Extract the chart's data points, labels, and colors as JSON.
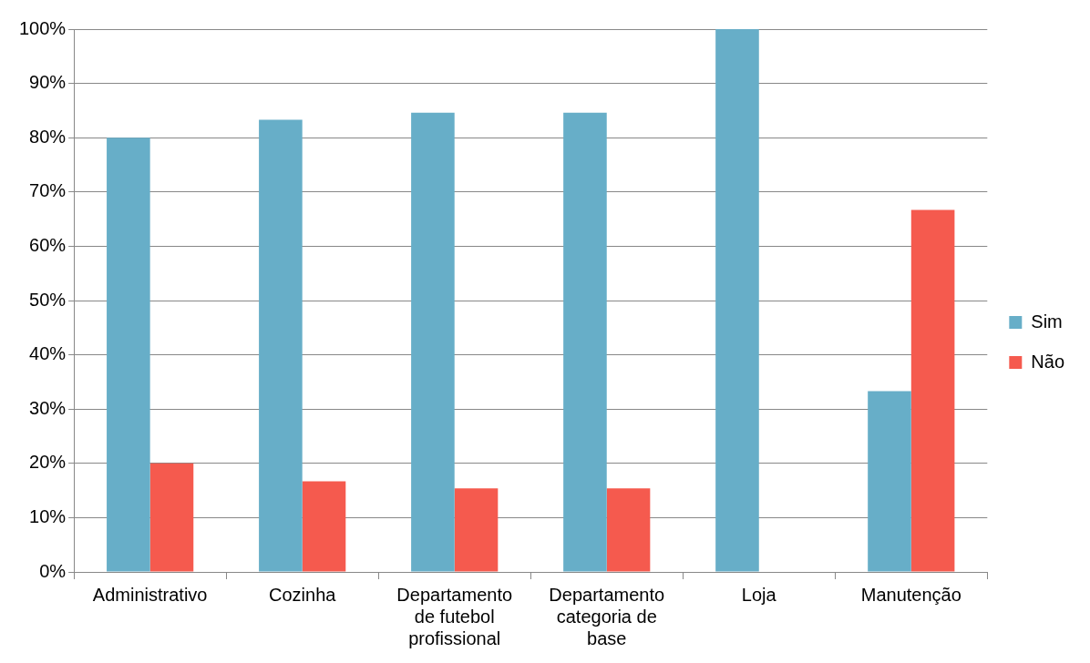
{
  "chart_data": {
    "type": "bar",
    "categories": [
      "Administrativo",
      "Cozinha",
      "Departamento de futebol profissional",
      "Departamento categoria de base",
      "Loja",
      "Manutenção"
    ],
    "series": [
      {
        "name": "Sim",
        "color": "#67aec8",
        "values": [
          80,
          83.3,
          84.6,
          84.6,
          100,
          33.3
        ]
      },
      {
        "name": "Não",
        "color": "#f55a4e",
        "values": [
          20,
          16.7,
          15.4,
          15.4,
          0,
          66.7
        ]
      }
    ],
    "ylim": [
      0,
      100
    ],
    "yticks": [
      {
        "value": 0,
        "label": "0%"
      },
      {
        "value": 10,
        "label": "10%"
      },
      {
        "value": 20,
        "label": "20%"
      },
      {
        "value": 30,
        "label": "30%"
      },
      {
        "value": 40,
        "label": "40%"
      },
      {
        "value": 50,
        "label": "50%"
      },
      {
        "value": 60,
        "label": "60%"
      },
      {
        "value": 70,
        "label": "70%"
      },
      {
        "value": 80,
        "label": "80%"
      },
      {
        "value": 90,
        "label": "90%"
      },
      {
        "value": 100,
        "label": "100%"
      }
    ],
    "grid": "y",
    "legend": "right"
  }
}
